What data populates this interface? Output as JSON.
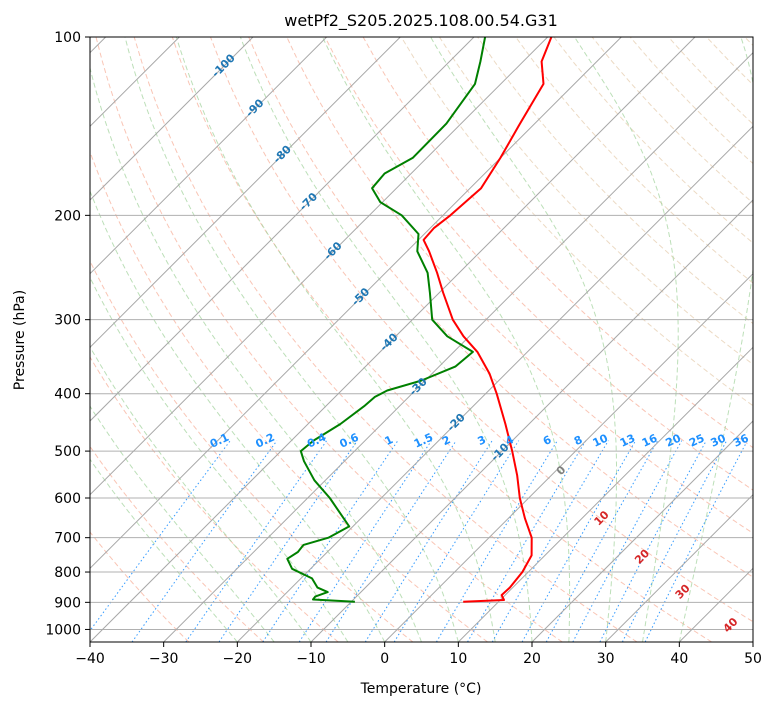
{
  "chart_data": {
    "type": "line",
    "title": "wetPf2_S205.2025.108.00.54.G31",
    "xlabel": "Temperature (°C)",
    "ylabel": "Pressure (hPa)",
    "xlim": [
      -40,
      50
    ],
    "ylim": [
      1050,
      100
    ],
    "y_scale": "log",
    "x_ticks": [
      -40,
      -30,
      -20,
      -10,
      0,
      10,
      20,
      30,
      40,
      50
    ],
    "y_ticks": [
      100,
      200,
      300,
      400,
      500,
      600,
      700,
      800,
      900,
      1000
    ],
    "grid": true,
    "series": [
      {
        "role": "temperature",
        "color": "#ff0000",
        "points": [
          {
            "p": 898,
            "t": 5.2
          },
          {
            "p": 892,
            "t": 10.5
          },
          {
            "p": 875,
            "t": 9.5
          },
          {
            "p": 850,
            "t": 9.6
          },
          {
            "p": 800,
            "t": 9.2
          },
          {
            "p": 750,
            "t": 8.2
          },
          {
            "p": 700,
            "t": 5.8
          },
          {
            "p": 650,
            "t": 2.3
          },
          {
            "p": 600,
            "t": -1.2
          },
          {
            "p": 550,
            "t": -4.6
          },
          {
            "p": 500,
            "t": -8.6
          },
          {
            "p": 450,
            "t": -13.2
          },
          {
            "p": 400,
            "t": -18.5
          },
          {
            "p": 370,
            "t": -22.2
          },
          {
            "p": 340,
            "t": -26.8
          },
          {
            "p": 320,
            "t": -30.8
          },
          {
            "p": 300,
            "t": -34.5
          },
          {
            "p": 270,
            "t": -39.5
          },
          {
            "p": 250,
            "t": -43.0
          },
          {
            "p": 230,
            "t": -47.0
          },
          {
            "p": 220,
            "t": -49.3
          },
          {
            "p": 210,
            "t": -49.5
          },
          {
            "p": 200,
            "t": -49.0
          },
          {
            "p": 180,
            "t": -48.5
          },
          {
            "p": 160,
            "t": -50.0
          },
          {
            "p": 140,
            "t": -52.0
          },
          {
            "p": 120,
            "t": -54.2
          },
          {
            "p": 110,
            "t": -57.5
          },
          {
            "p": 100,
            "t": -59.5
          }
        ]
      },
      {
        "role": "dewpoint",
        "color": "#008000",
        "points": [
          {
            "p": 898,
            "t": -9.5
          },
          {
            "p": 890,
            "t": -15.5
          },
          {
            "p": 880,
            "t": -15.6
          },
          {
            "p": 865,
            "t": -14.5
          },
          {
            "p": 850,
            "t": -16.5
          },
          {
            "p": 820,
            "t": -18.5
          },
          {
            "p": 790,
            "t": -22.5
          },
          {
            "p": 760,
            "t": -24.5
          },
          {
            "p": 740,
            "t": -24.0
          },
          {
            "p": 720,
            "t": -24.2
          },
          {
            "p": 700,
            "t": -21.8
          },
          {
            "p": 670,
            "t": -20.5
          },
          {
            "p": 640,
            "t": -23.2
          },
          {
            "p": 600,
            "t": -27.0
          },
          {
            "p": 560,
            "t": -31.5
          },
          {
            "p": 520,
            "t": -35.5
          },
          {
            "p": 500,
            "t": -37.3
          },
          {
            "p": 480,
            "t": -37.0
          },
          {
            "p": 450,
            "t": -35.6
          },
          {
            "p": 420,
            "t": -34.8
          },
          {
            "p": 405,
            "t": -34.6
          },
          {
            "p": 395,
            "t": -33.8
          },
          {
            "p": 380,
            "t": -30.5
          },
          {
            "p": 360,
            "t": -27.8
          },
          {
            "p": 340,
            "t": -27.4
          },
          {
            "p": 320,
            "t": -33.0
          },
          {
            "p": 300,
            "t": -37.3
          },
          {
            "p": 270,
            "t": -41.3
          },
          {
            "p": 250,
            "t": -44.3
          },
          {
            "p": 230,
            "t": -48.6
          },
          {
            "p": 215,
            "t": -50.8
          },
          {
            "p": 200,
            "t": -55.6
          },
          {
            "p": 190,
            "t": -60.3
          },
          {
            "p": 180,
            "t": -63.3
          },
          {
            "p": 170,
            "t": -63.6
          },
          {
            "p": 160,
            "t": -61.9
          },
          {
            "p": 140,
            "t": -62.0
          },
          {
            "p": 120,
            "t": -63.5
          },
          {
            "p": 110,
            "t": -65.8
          },
          {
            "p": 100,
            "t": -68.5
          }
        ]
      }
    ],
    "isotherm_labels": {
      "color": "#1f77b4",
      "items": [
        {
          "t": -100,
          "label": "-100",
          "p": 112
        },
        {
          "t": -90,
          "label": "-90",
          "p": 132
        },
        {
          "t": -80,
          "label": "-80",
          "p": 158
        },
        {
          "t": -70,
          "label": "-70",
          "p": 190
        },
        {
          "t": -60,
          "label": "-60",
          "p": 230
        },
        {
          "t": -50,
          "label": "-50",
          "p": 275
        },
        {
          "t": -40,
          "label": "-40",
          "p": 328
        },
        {
          "t": -30,
          "label": "-30",
          "p": 390
        },
        {
          "t": -20,
          "label": "-20",
          "p": 448
        },
        {
          "t": -10,
          "label": "-10",
          "p": 503
        }
      ]
    },
    "moist_adiabat_labels": {
      "color": "#d62728",
      "p": 540,
      "items": [
        {
          "label": "0",
          "x": 24,
          "p": 540,
          "color": "#808080"
        },
        {
          "label": "10",
          "x": 29.5,
          "p": 650,
          "color": "#d62728"
        },
        {
          "label": "20",
          "x": 35,
          "p": 755,
          "color": "#d62728"
        },
        {
          "label": "30",
          "x": 40.5,
          "p": 865,
          "color": "#d62728"
        },
        {
          "label": "40",
          "x": 47,
          "p": 985,
          "color": "#d62728"
        }
      ]
    },
    "mixing_ratio_labels": {
      "color": "#1e90ff",
      "p": 500,
      "items": [
        {
          "label": "0.1",
          "x": -22.4
        },
        {
          "label": "0.2",
          "x": -16.2
        },
        {
          "label": "0.4",
          "x": -9.2
        },
        {
          "label": "0.6",
          "x": -4.8
        },
        {
          "label": "1",
          "x": 0.6
        },
        {
          "label": "1.5",
          "x": 5.3
        },
        {
          "label": "2",
          "x": 8.4
        },
        {
          "label": "3",
          "x": 13.2
        },
        {
          "label": "4",
          "x": 17.0
        },
        {
          "label": "6",
          "x": 22.1
        },
        {
          "label": "8",
          "x": 26.3
        },
        {
          "label": "10",
          "x": 29.3
        },
        {
          "label": "13",
          "x": 33.0
        },
        {
          "label": "16",
          "x": 36.0
        },
        {
          "label": "20",
          "x": 39.2
        },
        {
          "label": "25",
          "x": 42.4
        },
        {
          "label": "30",
          "x": 45.3
        },
        {
          "label": "36",
          "x": 48.4
        }
      ]
    }
  }
}
